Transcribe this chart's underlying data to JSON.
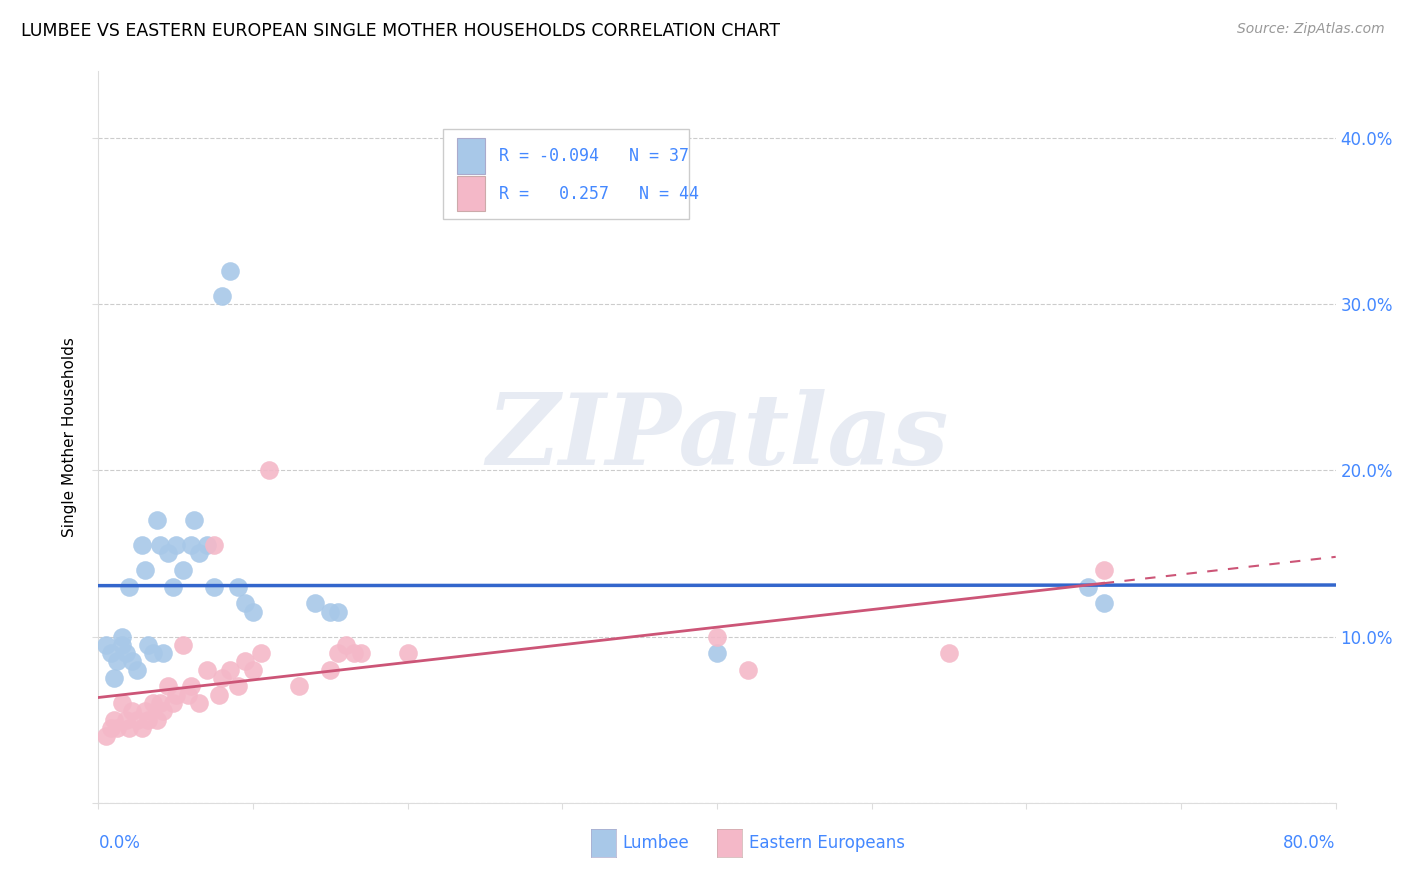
{
  "title": "LUMBEE VS EASTERN EUROPEAN SINGLE MOTHER HOUSEHOLDS CORRELATION CHART",
  "source": "Source: ZipAtlas.com",
  "ylabel": "Single Mother Households",
  "legend_lumbee_R": "-0.094",
  "legend_lumbee_N": "37",
  "legend_eastern_R": "0.257",
  "legend_eastern_N": "44",
  "lumbee_color": "#a8c8e8",
  "eastern_color": "#f4b8c8",
  "lumbee_line_color": "#3366cc",
  "eastern_line_color": "#cc5577",
  "watermark_text": "ZIPatlas",
  "xlim": [
    0.0,
    0.8
  ],
  "ylim": [
    0.0,
    0.44
  ],
  "xticks": [
    0.0,
    0.1,
    0.2,
    0.3,
    0.4,
    0.5,
    0.6,
    0.7,
    0.8
  ],
  "yticks": [
    0.0,
    0.1,
    0.2,
    0.3,
    0.4
  ],
  "lumbee_x": [
    0.005,
    0.008,
    0.01,
    0.012,
    0.015,
    0.015,
    0.018,
    0.02,
    0.022,
    0.025,
    0.028,
    0.03,
    0.032,
    0.035,
    0.038,
    0.04,
    0.042,
    0.045,
    0.048,
    0.05,
    0.055,
    0.06,
    0.062,
    0.065,
    0.07,
    0.075,
    0.08,
    0.085,
    0.09,
    0.095,
    0.1,
    0.14,
    0.15,
    0.155,
    0.4,
    0.64,
    0.65
  ],
  "lumbee_y": [
    0.095,
    0.09,
    0.075,
    0.085,
    0.095,
    0.1,
    0.09,
    0.13,
    0.085,
    0.08,
    0.155,
    0.14,
    0.095,
    0.09,
    0.17,
    0.155,
    0.09,
    0.15,
    0.13,
    0.155,
    0.14,
    0.155,
    0.17,
    0.15,
    0.155,
    0.13,
    0.305,
    0.32,
    0.13,
    0.12,
    0.115,
    0.12,
    0.115,
    0.115,
    0.09,
    0.13,
    0.12
  ],
  "eastern_x": [
    0.005,
    0.008,
    0.01,
    0.012,
    0.015,
    0.018,
    0.02,
    0.022,
    0.025,
    0.028,
    0.03,
    0.032,
    0.035,
    0.038,
    0.04,
    0.042,
    0.045,
    0.048,
    0.05,
    0.055,
    0.058,
    0.06,
    0.065,
    0.07,
    0.075,
    0.078,
    0.08,
    0.085,
    0.09,
    0.095,
    0.1,
    0.105,
    0.11,
    0.13,
    0.15,
    0.155,
    0.16,
    0.165,
    0.17,
    0.2,
    0.4,
    0.42,
    0.55,
    0.65
  ],
  "eastern_y": [
    0.04,
    0.045,
    0.05,
    0.045,
    0.06,
    0.05,
    0.045,
    0.055,
    0.05,
    0.045,
    0.055,
    0.05,
    0.06,
    0.05,
    0.06,
    0.055,
    0.07,
    0.06,
    0.065,
    0.095,
    0.065,
    0.07,
    0.06,
    0.08,
    0.155,
    0.065,
    0.075,
    0.08,
    0.07,
    0.085,
    0.08,
    0.09,
    0.2,
    0.07,
    0.08,
    0.09,
    0.095,
    0.09,
    0.09,
    0.09,
    0.1,
    0.08,
    0.09,
    0.14
  ]
}
